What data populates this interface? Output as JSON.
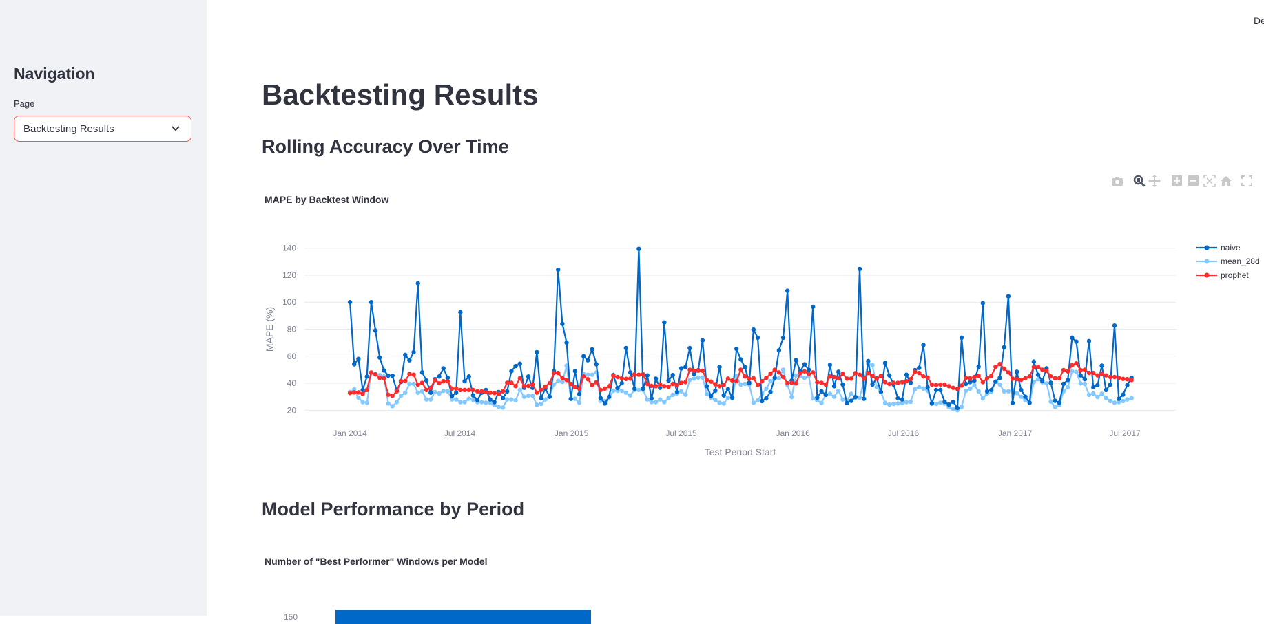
{
  "sidebar": {
    "title": "Navigation",
    "page_label": "Page",
    "page_value": "Backtesting Results"
  },
  "header": {
    "deploy_label": "De"
  },
  "main": {
    "title": "Backtesting Results",
    "section1": "Rolling Accuracy Over Time",
    "section2": "Model Performance by Period"
  },
  "toolbar": {
    "icons": [
      "camera-icon",
      "zoom-icon",
      "pan-icon",
      "zoom-in-icon",
      "zoom-out-icon",
      "autoscale-icon",
      "home-icon",
      "fullscreen-icon"
    ]
  },
  "colors": {
    "naive": "#0068c9",
    "mean_28d": "#83c9ff",
    "prophet": "#ff2b2b",
    "accent": "#ff4b4b"
  },
  "chart_data": [
    {
      "type": "line",
      "title": "MAPE by Backtest Window",
      "xlabel": "Test Period Start",
      "ylabel": "MAPE (%)",
      "ylim": [
        12,
        148
      ],
      "xlim": [
        "2013-10-18",
        "2017-09-23"
      ],
      "grid": true,
      "legend": "right",
      "x_ticks": [
        [
          "2014-01-01",
          "Jan 2014"
        ],
        [
          "2014-07-01",
          "Jul 2014"
        ],
        [
          "2015-01-01",
          "Jan 2015"
        ],
        [
          "2015-07-01",
          "Jul 2015"
        ],
        [
          "2016-01-01",
          "Jan 2016"
        ],
        [
          "2016-07-01",
          "Jul 2016"
        ],
        [
          "2017-01-01",
          "Jan 2017"
        ],
        [
          "2017-07-01",
          "Jul 2017"
        ]
      ],
      "y_ticks": [
        20,
        40,
        60,
        80,
        100,
        120,
        140
      ],
      "x": [
        "2014-01-01",
        "2014-01-08",
        "2014-01-15",
        "2014-01-22",
        "2014-01-29",
        "2014-02-05",
        "2014-02-12",
        "2014-02-19",
        "2014-02-26",
        "2014-03-05",
        "2014-03-12",
        "2014-03-19",
        "2014-03-26",
        "2014-04-02",
        "2014-04-09",
        "2014-04-16",
        "2014-04-23",
        "2014-04-30",
        "2014-05-07",
        "2014-05-14",
        "2014-05-21",
        "2014-05-28",
        "2014-06-04",
        "2014-06-11",
        "2014-06-18",
        "2014-06-25",
        "2014-07-02",
        "2014-07-09",
        "2014-07-16",
        "2014-07-23",
        "2014-07-30",
        "2014-08-06",
        "2014-08-13",
        "2014-08-20",
        "2014-08-27",
        "2014-09-03",
        "2014-09-10",
        "2014-09-17",
        "2014-09-24",
        "2014-10-01",
        "2014-10-08",
        "2014-10-15",
        "2014-10-22",
        "2014-10-29",
        "2014-11-05",
        "2014-11-12",
        "2014-11-19",
        "2014-11-26",
        "2014-12-03",
        "2014-12-10",
        "2014-12-17",
        "2014-12-24",
        "2014-12-31",
        "2015-01-07",
        "2015-01-14",
        "2015-01-21",
        "2015-01-28",
        "2015-02-04",
        "2015-02-11",
        "2015-02-18",
        "2015-02-25",
        "2015-03-04",
        "2015-03-11",
        "2015-03-18",
        "2015-03-25",
        "2015-04-01",
        "2015-04-08",
        "2015-04-15",
        "2015-04-22",
        "2015-04-29",
        "2015-05-06",
        "2015-05-13",
        "2015-05-20",
        "2015-05-27",
        "2015-06-03",
        "2015-06-10",
        "2015-06-17",
        "2015-06-24",
        "2015-07-01",
        "2015-07-08",
        "2015-07-15",
        "2015-07-22",
        "2015-07-29",
        "2015-08-05",
        "2015-08-12",
        "2015-08-19",
        "2015-08-26",
        "2015-09-02",
        "2015-09-09",
        "2015-09-16",
        "2015-09-23",
        "2015-09-30",
        "2015-10-07",
        "2015-10-14",
        "2015-10-21",
        "2015-10-28",
        "2015-11-04",
        "2015-11-11",
        "2015-11-18",
        "2015-11-25",
        "2015-12-02",
        "2015-12-09",
        "2015-12-16",
        "2015-12-23",
        "2015-12-30",
        "2016-01-06",
        "2016-01-13",
        "2016-01-20",
        "2016-01-27",
        "2016-02-03",
        "2016-02-10",
        "2016-02-17",
        "2016-02-24",
        "2016-03-02",
        "2016-03-09",
        "2016-03-16",
        "2016-03-23",
        "2016-03-30",
        "2016-04-06",
        "2016-04-13",
        "2016-04-20",
        "2016-04-27",
        "2016-05-04",
        "2016-05-11",
        "2016-05-18",
        "2016-05-25",
        "2016-06-01",
        "2016-06-08",
        "2016-06-15",
        "2016-06-22",
        "2016-06-29",
        "2016-07-06",
        "2016-07-13",
        "2016-07-20",
        "2016-07-27",
        "2016-08-03",
        "2016-08-10",
        "2016-08-17",
        "2016-08-24",
        "2016-08-31",
        "2016-09-07",
        "2016-09-14",
        "2016-09-21",
        "2016-09-28",
        "2016-10-05",
        "2016-10-12",
        "2016-10-19",
        "2016-10-26",
        "2016-11-02",
        "2016-11-09",
        "2016-11-16",
        "2016-11-23",
        "2016-11-30",
        "2016-12-07",
        "2016-12-14",
        "2016-12-21",
        "2016-12-28",
        "2017-01-04",
        "2017-01-11",
        "2017-01-18",
        "2017-01-25",
        "2017-02-01",
        "2017-02-08",
        "2017-02-15",
        "2017-02-22",
        "2017-03-01",
        "2017-03-08",
        "2017-03-15",
        "2017-03-22",
        "2017-03-29",
        "2017-04-05",
        "2017-04-12",
        "2017-04-19",
        "2017-04-26",
        "2017-05-03",
        "2017-05-10",
        "2017-05-17",
        "2017-05-24",
        "2017-05-31",
        "2017-06-07",
        "2017-06-14",
        "2017-06-21",
        "2017-06-28",
        "2017-07-05",
        "2017-07-12"
      ],
      "series": [
        {
          "name": "naive",
          "values": [
            100,
            54,
            58,
            35,
            45,
            100,
            79,
            59,
            49.5,
            45.6,
            45.6,
            34.6,
            41,
            61,
            57,
            63,
            114,
            48,
            42,
            33,
            43,
            45,
            51,
            44,
            30.5,
            33,
            92.5,
            41.5,
            45,
            31,
            27.6,
            33,
            35,
            28,
            26,
            33.5,
            29,
            34,
            49,
            52.7,
            54.4,
            36.6,
            45,
            36.6,
            63,
            29,
            36,
            30,
            49,
            124,
            84,
            70,
            28.5,
            49,
            32,
            60,
            57,
            65,
            54,
            29,
            25,
            30,
            46,
            36.4,
            40,
            66,
            48,
            36,
            139.5,
            36,
            45.8,
            28.8,
            43.4,
            36.6,
            85,
            42,
            46,
            33.5,
            51,
            52,
            66,
            46.8,
            49.7,
            71.7,
            37.8,
            30.7,
            34.4,
            52,
            31,
            35.6,
            29.3,
            65.4,
            57.6,
            51.9,
            40.3,
            79.7,
            73.7,
            26.8,
            28.8,
            33.5,
            44,
            64.4,
            73.7,
            108.5,
            42,
            57,
            49,
            54,
            50,
            96.6,
            29.3,
            34,
            31.4,
            53.6,
            37.8,
            48.5,
            39,
            25.4,
            27,
            29.8,
            124.6,
            28.5,
            56.4,
            39,
            43.7,
            33.5,
            55,
            45.8,
            39,
            28.8,
            28,
            46.3,
            40.3,
            49.7,
            51.4,
            68.3,
            37,
            25,
            35,
            35,
            26.3,
            24.2,
            26.3,
            21.7,
            73.7,
            39.5,
            40.8,
            42,
            52.2,
            99.3,
            34,
            35,
            41.2,
            44,
            66.6,
            104.4,
            25.4,
            48.5,
            35,
            30,
            25.6,
            56,
            46.3,
            41.7,
            51,
            40.3,
            27,
            25.6,
            39.5,
            42.4,
            73.7,
            70.8,
            45.8,
            43,
            71.2,
            37,
            38.6,
            53,
            35,
            39,
            82.7,
            28.5,
            31.5,
            38.6,
            44
          ]
        },
        {
          "name": "mean_28d",
          "values": [
            33.5,
            35.5,
            29.3,
            26,
            25.6,
            47.6,
            47,
            46,
            45,
            25,
            23,
            26,
            30.7,
            33,
            39.5,
            39.5,
            33,
            34,
            28,
            28,
            33.5,
            32.4,
            34.4,
            34,
            28,
            28,
            26,
            26,
            28.5,
            27.6,
            26,
            26,
            25.6,
            25.6,
            23.7,
            22.5,
            22,
            28,
            28,
            27.3,
            35,
            30,
            30.7,
            30.7,
            24,
            24.7,
            28,
            30.5,
            39,
            41.7,
            41,
            53,
            28.5,
            28.5,
            25.6,
            47,
            46.3,
            46.3,
            48,
            26.8,
            26.8,
            29.3,
            34.4,
            34.4,
            34.4,
            33,
            31,
            35,
            35,
            35,
            28,
            26,
            26,
            28,
            26,
            29,
            31.4,
            32.2,
            34,
            31.5,
            42.5,
            43.4,
            44.2,
            44.2,
            32.2,
            29.3,
            27.6,
            25.6,
            25,
            29.3,
            28.8,
            45.4,
            39,
            39.5,
            39,
            25.6,
            27.3,
            32.2,
            36,
            41.5,
            43.7,
            43.7,
            50,
            38.6,
            29.8,
            45.8,
            45.4,
            44,
            45.4,
            28.8,
            27.3,
            25.4,
            31.4,
            32.2,
            30,
            34.4,
            28,
            27,
            32.2,
            29.3,
            29.3,
            42,
            54.4,
            53.4,
            37,
            33.5,
            25.4,
            24.2,
            24.7,
            25,
            25.4,
            26,
            26.3,
            35.6,
            37,
            36,
            34.4,
            25.6,
            24.7,
            25.6,
            25,
            22.2,
            20.8,
            20,
            22.5,
            34.4,
            36,
            38.6,
            34,
            28.8,
            32.2,
            33.5,
            41.2,
            39,
            34,
            34,
            35,
            32.7,
            30,
            27.3,
            25.6,
            40.8,
            43,
            40.7,
            39.8,
            26.4,
            22.5,
            23.9,
            34,
            37,
            48.8,
            48.3,
            39.8,
            39.5,
            31.4,
            32.4,
            29.8,
            32.2,
            29,
            26.8,
            25.6,
            26,
            26.8,
            28,
            29
          ]
        },
        {
          "name": "prophet",
          "values": [
            32.7,
            33.2,
            33.2,
            32.2,
            35,
            48,
            46.6,
            44,
            43.7,
            31.5,
            30.7,
            34,
            41.7,
            41.7,
            46.8,
            46.3,
            39,
            40.3,
            35,
            36.6,
            42.4,
            40,
            41.5,
            41.5,
            36,
            36,
            35,
            35,
            35,
            35,
            34,
            34,
            33.5,
            33,
            32.7,
            32.2,
            34,
            40.3,
            40.3,
            37.8,
            43.7,
            37.8,
            38,
            39,
            33,
            35,
            37.5,
            40,
            47.6,
            47.6,
            43.7,
            42.4,
            39.5,
            37,
            36,
            45,
            43,
            38.6,
            40.7,
            35,
            36,
            37.8,
            45.4,
            44.6,
            43.7,
            43.2,
            43.4,
            46.6,
            46.3,
            46.6,
            39.5,
            38,
            37.8,
            39,
            37.8,
            37.5,
            39.5,
            38.6,
            40.3,
            40.8,
            50,
            49.3,
            49.3,
            49.3,
            42.4,
            41.2,
            39.2,
            37.8,
            38.6,
            43.4,
            42,
            41.5,
            50,
            45,
            43.4,
            43.7,
            38.6,
            41.5,
            44,
            47,
            50,
            48,
            44.6,
            40,
            40.3,
            39.8,
            47.6,
            48.8,
            46.8,
            48,
            40.7,
            40.3,
            39,
            45,
            44.6,
            43.7,
            47,
            43.4,
            43.4,
            47.5,
            46.3,
            43.4,
            47.6,
            45.4,
            43.4,
            45.4,
            40.8,
            39.5,
            40.3,
            40.3,
            40.7,
            41.5,
            43,
            48.5,
            47.6,
            45,
            44.2,
            39,
            38.6,
            39,
            39,
            37.8,
            36.6,
            35.8,
            38.3,
            44,
            43.7,
            44.6,
            45.4,
            40.8,
            43.7,
            45.4,
            52.2,
            54.2,
            50.8,
            48,
            43.4,
            43,
            42.5,
            43.7,
            45,
            51.9,
            52.2,
            50,
            49.2,
            45,
            43.7,
            43.7,
            49.7,
            48.8,
            53.4,
            54.7,
            49.7,
            50,
            47.6,
            47.6,
            45.8,
            47,
            45.8,
            44.6,
            44.6,
            44,
            43.2,
            43,
            42.4
          ]
        }
      ]
    },
    {
      "type": "bar",
      "title": "Number of \"Best Performer\" Windows per Model",
      "y_ticks": [
        150
      ],
      "color": "#0068c9"
    }
  ]
}
